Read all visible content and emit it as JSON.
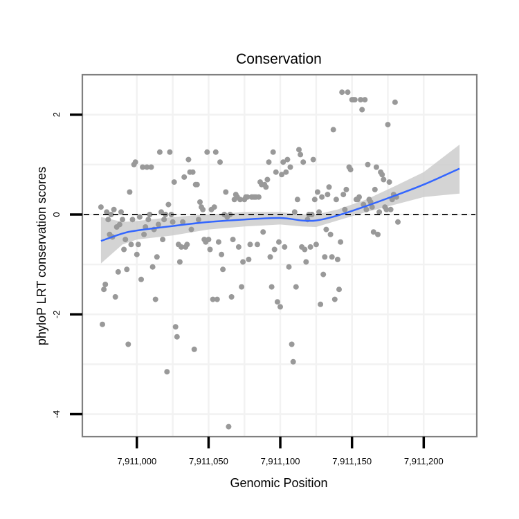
{
  "chart_data": {
    "type": "scatter",
    "title": "Conservation",
    "xlabel": "Genomic Position",
    "ylabel": "phyloP LRT conservation scores",
    "xlim": [
      7910962,
      7911237
    ],
    "ylim": [
      -4.45,
      2.8
    ],
    "x_ticks": [
      7911000,
      7911050,
      7911100,
      7911150,
      7911200
    ],
    "x_tick_labels": [
      "7,911,000",
      "7,911,050",
      "7,911,100",
      "7,911,150",
      "7,911,200"
    ],
    "y_ticks": [
      -4,
      -2,
      0,
      2
    ],
    "y_tick_labels": [
      "-4",
      "-2",
      "0",
      "2"
    ],
    "grid": true,
    "reference_line": {
      "y": 0,
      "style": "dashed"
    },
    "colors": {
      "points": "#999999",
      "smooth": "#3366FF",
      "band": "#cccccc",
      "reference": "#000000",
      "panel_border": "#808080",
      "grid": "#f2f2f2"
    },
    "series": [
      {
        "name": "scores",
        "points": [
          [
            7910975,
            0.15
          ],
          [
            7910976,
            -2.2
          ],
          [
            7910977,
            -1.5
          ],
          [
            7910978,
            -1.4
          ],
          [
            7910979,
            0.05
          ],
          [
            7910980,
            -0.1
          ],
          [
            7910981,
            -0.4
          ],
          [
            7910982,
            0.0
          ],
          [
            7910983,
            -0.45
          ],
          [
            7910984,
            0.1
          ],
          [
            7910985,
            -1.65
          ],
          [
            7910986,
            -0.25
          ],
          [
            7910987,
            -1.15
          ],
          [
            7910988,
            -0.2
          ],
          [
            7910989,
            0.05
          ],
          [
            7910990,
            -0.1
          ],
          [
            7910991,
            -0.7
          ],
          [
            7910992,
            -0.5
          ],
          [
            7910993,
            -1.1
          ],
          [
            7910994,
            -2.6
          ],
          [
            7910995,
            0.45
          ],
          [
            7910996,
            -0.6
          ],
          [
            7910997,
            -0.1
          ],
          [
            7910998,
            1.0
          ],
          [
            7910999,
            1.05
          ],
          [
            7911000,
            -0.8
          ],
          [
            7911001,
            -0.6
          ],
          [
            7911002,
            -0.05
          ],
          [
            7911003,
            -1.3
          ],
          [
            7911004,
            0.95
          ],
          [
            7911005,
            -0.4
          ],
          [
            7911006,
            -0.25
          ],
          [
            7911007,
            0.95
          ],
          [
            7911008,
            -0.1
          ],
          [
            7911009,
            0.0
          ],
          [
            7911010,
            0.95
          ],
          [
            7911011,
            -1.05
          ],
          [
            7911012,
            -0.3
          ],
          [
            7911013,
            -1.7
          ],
          [
            7911014,
            -0.85
          ],
          [
            7911015,
            -0.2
          ],
          [
            7911016,
            1.25
          ],
          [
            7911017,
            0.05
          ],
          [
            7911018,
            -0.5
          ],
          [
            7911019,
            -0.1
          ],
          [
            7911020,
            0.0
          ],
          [
            7911021,
            -3.15
          ],
          [
            7911022,
            0.2
          ],
          [
            7911023,
            1.25
          ],
          [
            7911024,
            0.0
          ],
          [
            7911025,
            -0.15
          ],
          [
            7911026,
            0.65
          ],
          [
            7911027,
            -2.25
          ],
          [
            7911028,
            -2.45
          ],
          [
            7911029,
            -0.6
          ],
          [
            7911030,
            -0.95
          ],
          [
            7911031,
            -0.65
          ],
          [
            7911032,
            -0.15
          ],
          [
            7911033,
            0.75
          ],
          [
            7911034,
            -0.65
          ],
          [
            7911035,
            -0.6
          ],
          [
            7911036,
            1.1
          ],
          [
            7911037,
            0.85
          ],
          [
            7911038,
            -0.3
          ],
          [
            7911039,
            0.85
          ],
          [
            7911040,
            -2.7
          ],
          [
            7911041,
            0.6
          ],
          [
            7911042,
            0.6
          ],
          [
            7911043,
            -0.1
          ],
          [
            7911044,
            0.25
          ],
          [
            7911045,
            0.15
          ],
          [
            7911046,
            0.1
          ],
          [
            7911047,
            -0.5
          ],
          [
            7911048,
            -0.55
          ],
          [
            7911049,
            1.25
          ],
          [
            7911050,
            -0.5
          ],
          [
            7911051,
            -0.7
          ],
          [
            7911052,
            0.1
          ],
          [
            7911053,
            -1.7
          ],
          [
            7911054,
            0.15
          ],
          [
            7911055,
            1.25
          ],
          [
            7911056,
            -1.7
          ],
          [
            7911057,
            -0.55
          ],
          [
            7911058,
            1.05
          ],
          [
            7911059,
            -0.8
          ],
          [
            7911060,
            -1.1
          ],
          [
            7911061,
            0.0
          ],
          [
            7911062,
            0.45
          ],
          [
            7911063,
            -0.05
          ],
          [
            7911064,
            -4.25
          ],
          [
            7911065,
            0.0
          ],
          [
            7911066,
            -1.65
          ],
          [
            7911067,
            -0.5
          ],
          [
            7911068,
            0.3
          ],
          [
            7911069,
            0.4
          ],
          [
            7911070,
            0.35
          ],
          [
            7911071,
            -0.65
          ],
          [
            7911072,
            0.3
          ],
          [
            7911073,
            -1.45
          ],
          [
            7911074,
            -0.95
          ],
          [
            7911075,
            0.3
          ],
          [
            7911076,
            0.35
          ],
          [
            7911077,
            0.35
          ],
          [
            7911078,
            -0.9
          ],
          [
            7911079,
            -0.6
          ],
          [
            7911080,
            0.35
          ],
          [
            7911081,
            0.35
          ],
          [
            7911082,
            0.35
          ],
          [
            7911083,
            0.35
          ],
          [
            7911084,
            -0.6
          ],
          [
            7911085,
            0.35
          ],
          [
            7911086,
            0.65
          ],
          [
            7911087,
            0.6
          ],
          [
            7911088,
            -0.35
          ],
          [
            7911089,
            0.6
          ],
          [
            7911090,
            0.55
          ],
          [
            7911091,
            0.7
          ],
          [
            7911092,
            1.05
          ],
          [
            7911093,
            -0.85
          ],
          [
            7911094,
            -1.45
          ],
          [
            7911095,
            1.25
          ],
          [
            7911096,
            -0.7
          ],
          [
            7911097,
            0.85
          ],
          [
            7911098,
            -1.75
          ],
          [
            7911099,
            -0.55
          ],
          [
            7911100,
            -1.85
          ],
          [
            7911101,
            0.8
          ],
          [
            7911102,
            1.05
          ],
          [
            7911103,
            -0.65
          ],
          [
            7911104,
            0.85
          ],
          [
            7911105,
            1.1
          ],
          [
            7911106,
            -1.05
          ],
          [
            7911107,
            0.95
          ],
          [
            7911108,
            -2.6
          ],
          [
            7911109,
            -2.95
          ],
          [
            7911110,
            0.05
          ],
          [
            7911111,
            -1.45
          ],
          [
            7911112,
            0.3
          ],
          [
            7911113,
            1.3
          ],
          [
            7911114,
            1.2
          ],
          [
            7911115,
            -0.65
          ],
          [
            7911116,
            1.05
          ],
          [
            7911117,
            -0.7
          ],
          [
            7911118,
            -0.95
          ],
          [
            7911119,
            -0.1
          ],
          [
            7911120,
            0.0
          ],
          [
            7911121,
            -0.65
          ],
          [
            7911122,
            0.0
          ],
          [
            7911123,
            1.1
          ],
          [
            7911124,
            0.3
          ],
          [
            7911125,
            -0.6
          ],
          [
            7911126,
            0.45
          ],
          [
            7911127,
            0.05
          ],
          [
            7911128,
            -1.8
          ],
          [
            7911129,
            0.35
          ],
          [
            7911130,
            -1.2
          ],
          [
            7911131,
            -0.85
          ],
          [
            7911132,
            -0.3
          ],
          [
            7911133,
            0.4
          ],
          [
            7911134,
            0.55
          ],
          [
            7911135,
            -0.4
          ],
          [
            7911136,
            -0.85
          ],
          [
            7911137,
            1.7
          ],
          [
            7911138,
            -1.7
          ],
          [
            7911139,
            0.3
          ],
          [
            7911140,
            -0.9
          ],
          [
            7911141,
            -1.5
          ],
          [
            7911142,
            -0.55
          ],
          [
            7911143,
            2.45
          ],
          [
            7911144,
            0.4
          ],
          [
            7911145,
            0.1
          ],
          [
            7911146,
            0.5
          ],
          [
            7911147,
            2.45
          ],
          [
            7911148,
            0.95
          ],
          [
            7911149,
            0.9
          ],
          [
            7911150,
            2.3
          ],
          [
            7911151,
            2.3
          ],
          [
            7911152,
            2.3
          ],
          [
            7911153,
            0.3
          ],
          [
            7911154,
            0.3
          ],
          [
            7911155,
            0.35
          ],
          [
            7911156,
            2.3
          ],
          [
            7911157,
            2.1
          ],
          [
            7911158,
            0.2
          ],
          [
            7911159,
            2.3
          ],
          [
            7911160,
            0.1
          ],
          [
            7911161,
            1.0
          ],
          [
            7911162,
            0.3
          ],
          [
            7911163,
            0.25
          ],
          [
            7911164,
            0.15
          ],
          [
            7911165,
            -0.35
          ],
          [
            7911166,
            0.5
          ],
          [
            7911167,
            0.95
          ],
          [
            7911168,
            -0.4
          ],
          [
            7911169,
            0.05
          ],
          [
            7911170,
            0.85
          ],
          [
            7911171,
            0.8
          ],
          [
            7911172,
            0.7
          ],
          [
            7911173,
            0.15
          ],
          [
            7911174,
            0.1
          ],
          [
            7911175,
            1.8
          ],
          [
            7911176,
            0.65
          ],
          [
            7911177,
            0.1
          ],
          [
            7911178,
            0.3
          ],
          [
            7911179,
            0.4
          ],
          [
            7911180,
            2.25
          ],
          [
            7911181,
            0.35
          ],
          [
            7911182,
            -0.15
          ]
        ]
      }
    ],
    "smooth": {
      "x": [
        7910975,
        7910990,
        7911000,
        7911025,
        7911050,
        7911075,
        7911100,
        7911115,
        7911125,
        7911140,
        7911160,
        7911180,
        7911200,
        7911225
      ],
      "y": [
        -0.53,
        -0.38,
        -0.32,
        -0.23,
        -0.15,
        -0.1,
        -0.07,
        -0.12,
        -0.12,
        -0.02,
        0.17,
        0.38,
        0.6,
        0.92
      ],
      "lower": [
        -0.98,
        -0.6,
        -0.5,
        -0.42,
        -0.3,
        -0.24,
        -0.2,
        -0.24,
        -0.25,
        -0.12,
        0.05,
        0.2,
        0.35,
        0.42
      ],
      "upper": [
        -0.05,
        -0.15,
        -0.13,
        -0.05,
        0.0,
        0.05,
        0.05,
        0.0,
        0.0,
        0.1,
        0.3,
        0.57,
        0.85,
        1.4
      ]
    }
  }
}
